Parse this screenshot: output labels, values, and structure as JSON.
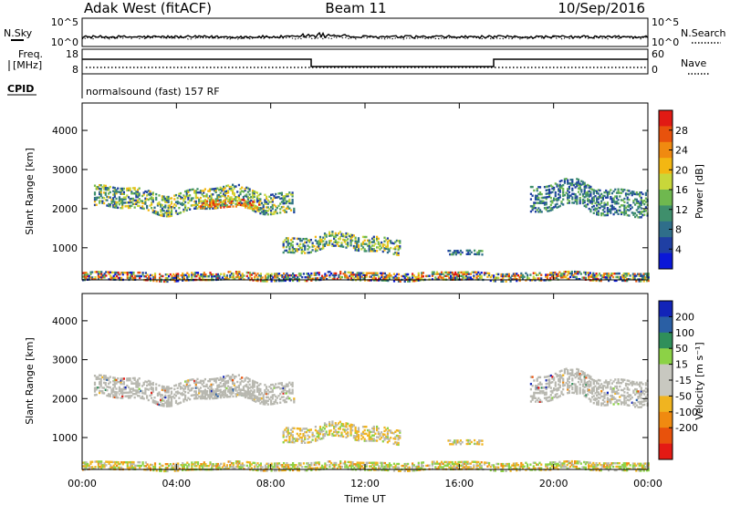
{
  "header": {
    "station": "Adak West (fitACF)",
    "beam": "Beam 11",
    "date": "10/Sep/2016"
  },
  "top_panel": {
    "nsky_label": "N.Sky",
    "nsky_ticks": [
      "10^5",
      "10^0"
    ],
    "nsearch_label": "N.Search",
    "nsearch_ticks": [
      "10^5",
      "10^0"
    ],
    "freq_label_line1": "Freq.",
    "freq_label_line2": "[MHz]",
    "freq_ticks": [
      "18",
      "8"
    ],
    "nave_label": "Nave",
    "nave_ticks": [
      "60",
      "0"
    ],
    "cpid_label": "CPID",
    "cpid_text": "normalsound (fast) 157 RF"
  },
  "colors": {
    "power_scale": [
      "#0a17d8",
      "#1f3fa3",
      "#2f6e8a",
      "#3f8f6c",
      "#6fb84f",
      "#c8d73a",
      "#f3b712",
      "#f08a10",
      "#e8520c",
      "#e11a14"
    ],
    "velocity_scale": [
      "#1224b8",
      "#2a5fa4",
      "#2f8f5a",
      "#8cd246",
      "#c8c8c0",
      "#c8c8c0",
      "#f0b420",
      "#f08a10",
      "#e8520c",
      "#e41a14"
    ],
    "ground_scatter": "#b8b8b0"
  },
  "chart_data": [
    {
      "type": "heatmap",
      "name": "power",
      "ylabel": "Slant Range [km]",
      "ylim": [
        180,
        4700
      ],
      "yticks": [
        "4000",
        "3000",
        "2000",
        "1000"
      ],
      "xlim": [
        0,
        24
      ],
      "colorbar_label": "Power [dB]",
      "colorbar_ticks": [
        "28",
        "24",
        "20",
        "16",
        "12",
        "8",
        "4"
      ],
      "colorbar_range": [
        0,
        30
      ],
      "echo_regions": [
        {
          "t0": 0.5,
          "t1": 9.0,
          "r0": 1800,
          "r1": 2700,
          "level": "mid"
        },
        {
          "t0": 5.0,
          "t1": 7.5,
          "r0": 1950,
          "r1": 2300,
          "level": "high"
        },
        {
          "t0": 8.5,
          "t1": 13.5,
          "r0": 800,
          "r1": 1500,
          "level": "mid"
        },
        {
          "t0": 15.5,
          "t1": 17.0,
          "r0": 800,
          "r1": 1000,
          "level": "low"
        },
        {
          "t0": 19.0,
          "t1": 24.0,
          "r0": 1700,
          "r1": 2900,
          "level": "low"
        },
        {
          "t0": 0.0,
          "t1": 24.0,
          "r0": 200,
          "r1": 400,
          "level": "near"
        }
      ]
    },
    {
      "type": "heatmap",
      "name": "velocity",
      "ylabel": "Slant Range [km]",
      "xlabel": "Time UT",
      "ylim": [
        180,
        4700
      ],
      "yticks": [
        "4000",
        "3000",
        "2000",
        "1000"
      ],
      "xlim": [
        0,
        24
      ],
      "xticks": [
        "00:00",
        "04:00",
        "08:00",
        "12:00",
        "16:00",
        "20:00",
        "00:00"
      ],
      "colorbar_label": "Velocity [m s⁻¹]",
      "colorbar_ticks": [
        "200",
        "100",
        "50",
        "15",
        "-15",
        "-50",
        "-100",
        "-200"
      ],
      "colorbar_range": [
        -250,
        250
      ]
    }
  ]
}
